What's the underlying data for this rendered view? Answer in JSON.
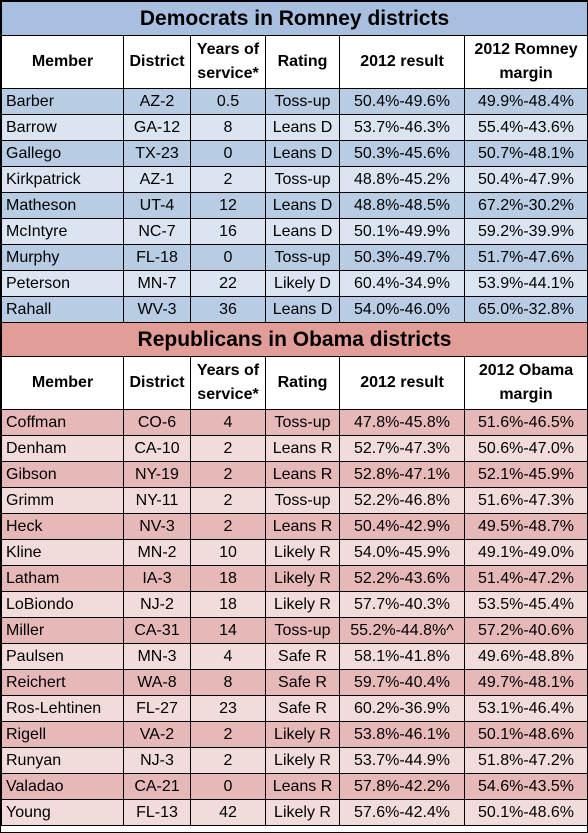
{
  "dem": {
    "title": "Democrats in Romney districts",
    "headers": [
      "Member",
      "District",
      "Years of service*",
      "Rating",
      "2012 result",
      "2012 Romney margin"
    ],
    "rows": [
      [
        "Barber",
        "AZ-2",
        "0.5",
        "Toss-up",
        "50.4%-49.6%",
        "49.9%-48.4%"
      ],
      [
        "Barrow",
        "GA-12",
        "8",
        "Leans D",
        "53.7%-46.3%",
        "55.4%-43.6%"
      ],
      [
        "Gallego",
        "TX-23",
        "0",
        "Leans D",
        "50.3%-45.6%",
        "50.7%-48.1%"
      ],
      [
        "Kirkpatrick",
        "AZ-1",
        "2",
        "Toss-up",
        "48.8%-45.2%",
        "50.4%-47.9%"
      ],
      [
        "Matheson",
        "UT-4",
        "12",
        "Leans D",
        "48.8%-48.5%",
        "67.2%-30.2%"
      ],
      [
        "McIntyre",
        "NC-7",
        "16",
        "Leans D",
        "50.1%-49.9%",
        "59.2%-39.9%"
      ],
      [
        "Murphy",
        "FL-18",
        "0",
        "Toss-up",
        "50.3%-49.7%",
        "51.7%-47.6%"
      ],
      [
        "Peterson",
        "MN-7",
        "22",
        "Likely D",
        "60.4%-34.9%",
        "53.9%-44.1%"
      ],
      [
        "Rahall",
        "WV-3",
        "36",
        "Leans D",
        "54.0%-46.0%",
        "65.0%-32.8%"
      ]
    ]
  },
  "rep": {
    "title": "Republicans in Obama districts",
    "headers": [
      "Member",
      "District",
      "Years of service*",
      "Rating",
      "2012 result",
      "2012 Obama margin"
    ],
    "rows": [
      [
        "Coffman",
        "CO-6",
        "4",
        "Toss-up",
        "47.8%-45.8%",
        "51.6%-46.5%"
      ],
      [
        "Denham",
        "CA-10",
        "2",
        "Leans R",
        "52.7%-47.3%",
        "50.6%-47.0%"
      ],
      [
        "Gibson",
        "NY-19",
        "2",
        "Leans R",
        "52.8%-47.1%",
        "52.1%-45.9%"
      ],
      [
        "Grimm",
        "NY-11",
        "2",
        "Toss-up",
        "52.2%-46.8%",
        "51.6%-47.3%"
      ],
      [
        "Heck",
        "NV-3",
        "2",
        "Leans R",
        "50.4%-42.9%",
        "49.5%-48.7%"
      ],
      [
        "Kline",
        "MN-2",
        "10",
        "Likely R",
        "54.0%-45.9%",
        "49.1%-49.0%"
      ],
      [
        "Latham",
        "IA-3",
        "18",
        "Likely R",
        "52.2%-43.6%",
        "51.4%-47.2%"
      ],
      [
        "LoBiondo",
        "NJ-2",
        "18",
        "Likely R",
        "57.7%-40.3%",
        "53.5%-45.4%"
      ],
      [
        "Miller",
        "CA-31",
        "14",
        "Toss-up",
        "55.2%-44.8%^",
        "57.2%-40.6%"
      ],
      [
        "Paulsen",
        "MN-3",
        "4",
        "Safe R",
        "58.1%-41.8%",
        "49.6%-48.8%"
      ],
      [
        "Reichert",
        "WA-8",
        "8",
        "Safe R",
        "59.7%-40.4%",
        "49.7%-48.1%"
      ],
      [
        "Ros-Lehtinen",
        "FL-27",
        "23",
        "Safe R",
        "60.2%-36.9%",
        "53.1%-46.4%"
      ],
      [
        "Rigell",
        "VA-2",
        "2",
        "Likely R",
        "53.8%-46.1%",
        "50.1%-48.6%"
      ],
      [
        "Runyan",
        "NJ-3",
        "2",
        "Likely R",
        "53.7%-44.9%",
        "51.8%-47.2%"
      ],
      [
        "Valadao",
        "CA-21",
        "0",
        "Leans R",
        "57.8%-42.2%",
        "54.6%-43.5%"
      ],
      [
        "Young",
        "FL-13",
        "42",
        "Likely R",
        "57.6%-42.4%",
        "50.1%-48.6%"
      ]
    ]
  },
  "colors": {
    "dem_title_bg": "#a8bfdf",
    "dem_row_dark": "#b8cce4",
    "dem_row_light": "#dbe5f1",
    "rep_title_bg": "#e29d99",
    "rep_row_dark": "#e6b9b8",
    "rep_row_light": "#f2dcdb"
  }
}
